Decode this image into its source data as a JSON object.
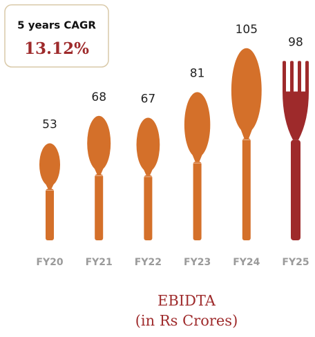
{
  "chart_data": {
    "type": "bar",
    "title": "EBIDTA",
    "subtitle": "(in Rs Crores)",
    "annotation": {
      "label": "5 years CAGR",
      "value": "13.12%"
    },
    "categories": [
      "FY20",
      "FY21",
      "FY22",
      "FY23",
      "FY24",
      "FY25"
    ],
    "values": [
      53,
      68,
      67,
      81,
      105,
      98
    ],
    "colors": [
      "#d4702a",
      "#d4702a",
      "#d4702a",
      "#d4702a",
      "#d4702a",
      "#9e2a2b"
    ]
  }
}
